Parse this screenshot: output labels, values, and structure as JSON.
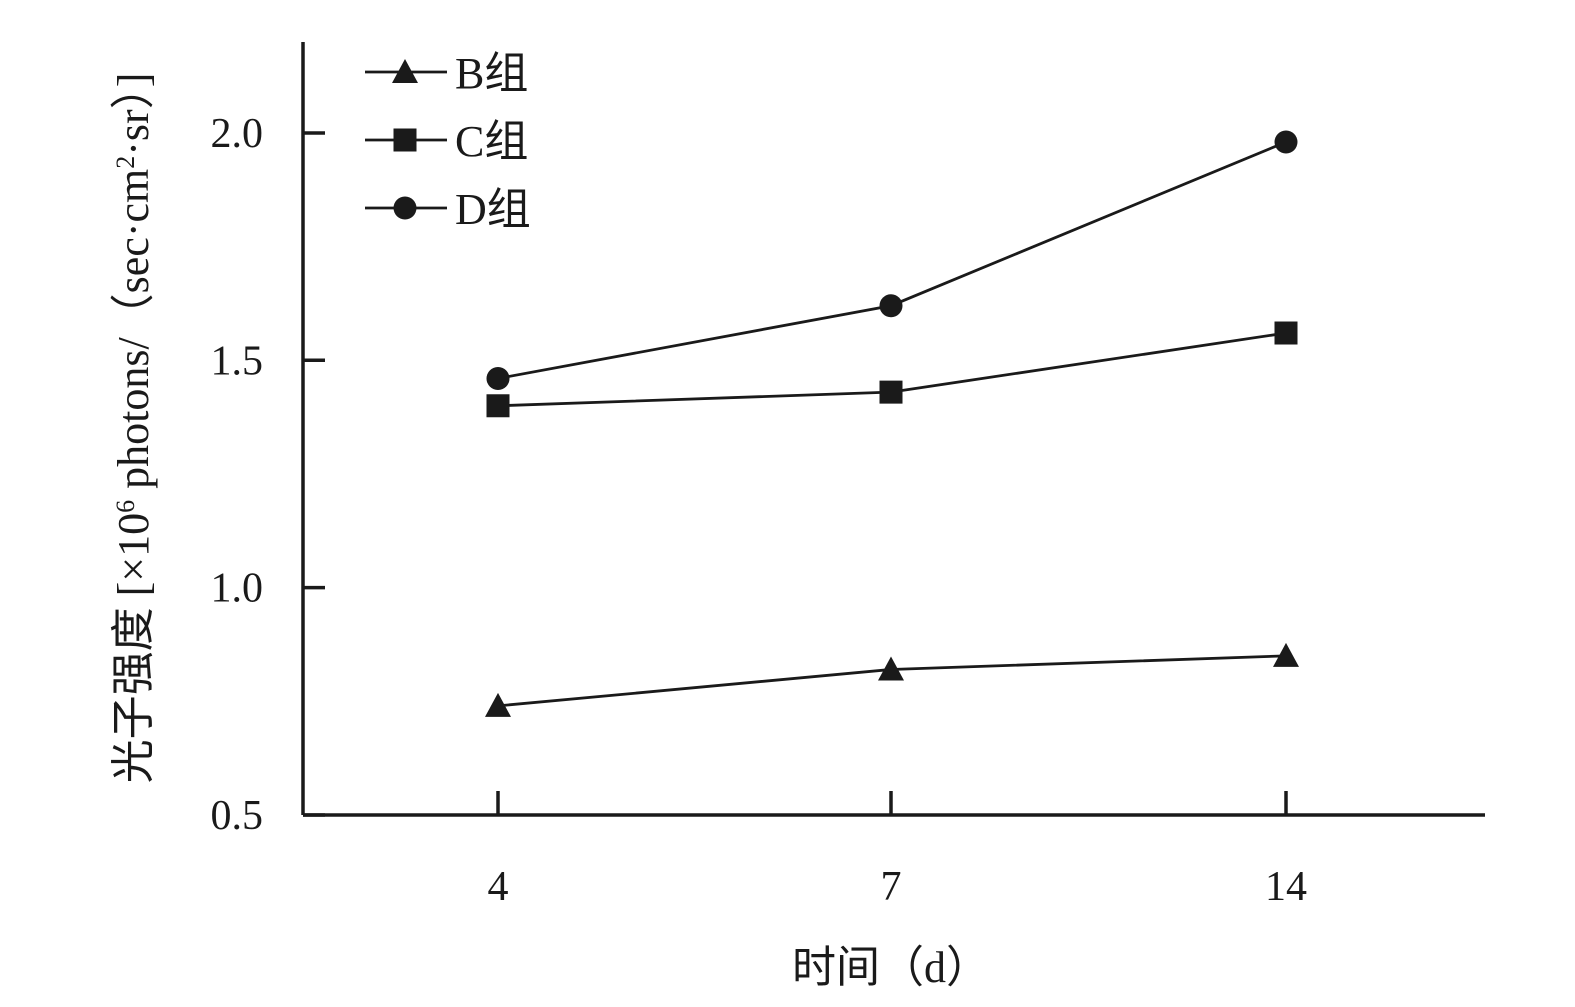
{
  "chart_data": {
    "type": "line",
    "title": "",
    "xlabel": "时间（d）",
    "ylabel": "光子强度 [×10⁶ photons/（sec·cm²·sr）]",
    "ylabel_parts": {
      "prefix": "光子强度 [×10",
      "exp": "6",
      "middle": " photons/（sec·cm",
      "exp2": "2",
      "suffix": "·sr）]"
    },
    "categories": [
      "4",
      "7",
      "14"
    ],
    "ylim": [
      0.5,
      2.2
    ],
    "yticks": [
      "0.5",
      "1.0",
      "1.5",
      "2.0"
    ],
    "ytick_values": [
      0.5,
      1.0,
      1.5,
      2.0
    ],
    "legend_position": "top-left",
    "grid": false,
    "series": [
      {
        "name": "B组",
        "marker": "triangle",
        "values": [
          0.74,
          0.82,
          0.85
        ]
      },
      {
        "name": "C组",
        "marker": "square",
        "values": [
          1.4,
          1.43,
          1.56
        ]
      },
      {
        "name": "D组",
        "marker": "circle",
        "values": [
          1.46,
          1.62,
          1.98
        ]
      }
    ],
    "colors": {
      "ink": "#1a1a1a"
    }
  }
}
